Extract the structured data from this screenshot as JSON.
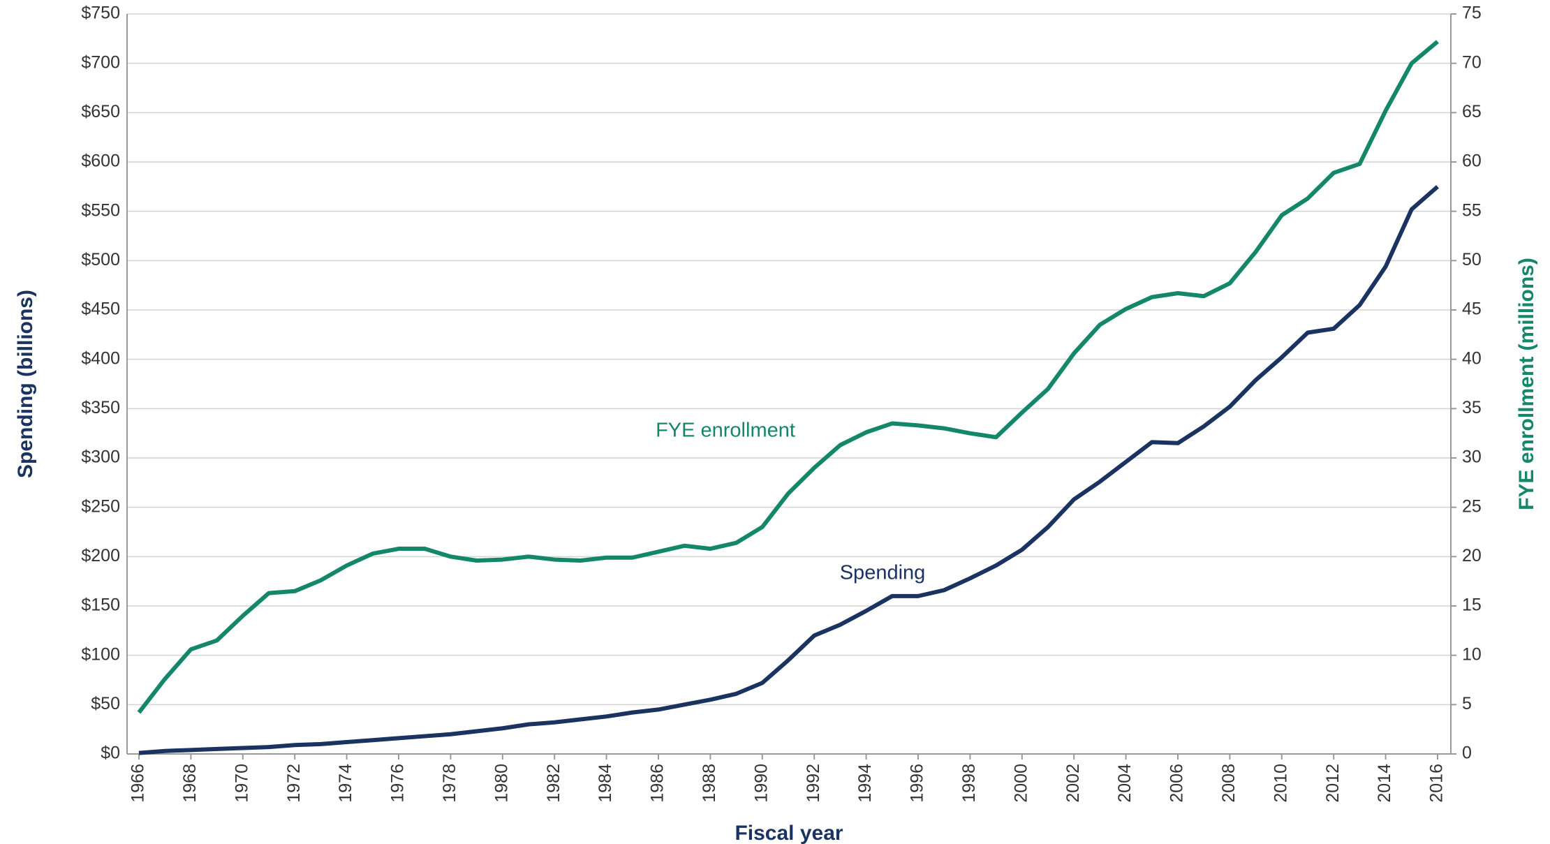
{
  "chart_data": {
    "type": "line",
    "xlabel": "Fiscal year",
    "ylabel": "Spending (billions)",
    "y2label": "FYE enrollment (millions)",
    "x": [
      1966,
      1967,
      1968,
      1969,
      1970,
      1971,
      1972,
      1973,
      1974,
      1975,
      1976,
      1977,
      1978,
      1979,
      1980,
      1981,
      1982,
      1983,
      1984,
      1985,
      1986,
      1987,
      1988,
      1989,
      1990,
      1991,
      1992,
      1993,
      1994,
      1995,
      1996,
      1997,
      1998,
      1999,
      2000,
      2001,
      2002,
      2003,
      2004,
      2005,
      2006,
      2007,
      2008,
      2009,
      2010,
      2011,
      2012,
      2013,
      2014,
      2015,
      2016
    ],
    "series": [
      {
        "name": "Spending",
        "color": "#1b3360",
        "axis": "y",
        "values": [
          1,
          3,
          4,
          5,
          6,
          7,
          9,
          10,
          12,
          14,
          16,
          18,
          20,
          23,
          26,
          30,
          32,
          35,
          38,
          42,
          45,
          50,
          55,
          61,
          72,
          95,
          120,
          131,
          145,
          160,
          160,
          166,
          178,
          191,
          207,
          230,
          258,
          276,
          296,
          316,
          315,
          332,
          352,
          379,
          402,
          427,
          431,
          455,
          494,
          552,
          575
        ]
      },
      {
        "name": "FYE enrollment",
        "color": "#14876a",
        "axis": "y2",
        "values": [
          4.2,
          7.6,
          10.6,
          11.5,
          14.0,
          16.3,
          16.5,
          17.6,
          19.1,
          20.3,
          20.8,
          20.8,
          20.0,
          19.6,
          19.7,
          20.0,
          19.7,
          19.6,
          19.9,
          19.9,
          20.5,
          21.1,
          20.8,
          21.4,
          23.0,
          26.4,
          29.0,
          31.3,
          32.6,
          33.5,
          33.3,
          33.0,
          32.5,
          32.1,
          34.6,
          37.0,
          40.6,
          43.5,
          45.1,
          46.3,
          46.7,
          46.4,
          47.7,
          50.9,
          54.6,
          56.3,
          58.9,
          59.8,
          65.2,
          70.0,
          72.2
        ]
      }
    ],
    "xlim": [
      1966,
      2016
    ],
    "xticks": [
      1966,
      1968,
      1970,
      1972,
      1974,
      1976,
      1978,
      1980,
      1982,
      1984,
      1986,
      1988,
      1990,
      1992,
      1994,
      1996,
      1998,
      2000,
      2002,
      2004,
      2006,
      2008,
      2010,
      2012,
      2014,
      2016
    ],
    "ylim": [
      0,
      750
    ],
    "yticks": [
      {
        "value": 0,
        "label": "$0"
      },
      {
        "value": 50,
        "label": "$50"
      },
      {
        "value": 100,
        "label": "$100"
      },
      {
        "value": 150,
        "label": "$150"
      },
      {
        "value": 200,
        "label": "$200"
      },
      {
        "value": 250,
        "label": "$250"
      },
      {
        "value": 300,
        "label": "$300"
      },
      {
        "value": 350,
        "label": "$350"
      },
      {
        "value": 400,
        "label": "$400"
      },
      {
        "value": 450,
        "label": "$450"
      },
      {
        "value": 500,
        "label": "$500"
      },
      {
        "value": 550,
        "label": "$550"
      },
      {
        "value": 600,
        "label": "$600"
      },
      {
        "value": 650,
        "label": "$650"
      },
      {
        "value": 700,
        "label": "$700"
      },
      {
        "value": 750,
        "label": "$750"
      }
    ],
    "y2lim": [
      0,
      75
    ],
    "y2ticks": [
      0,
      5,
      10,
      15,
      20,
      25,
      30,
      35,
      40,
      45,
      50,
      55,
      60,
      65,
      70,
      75
    ],
    "grid": true
  }
}
